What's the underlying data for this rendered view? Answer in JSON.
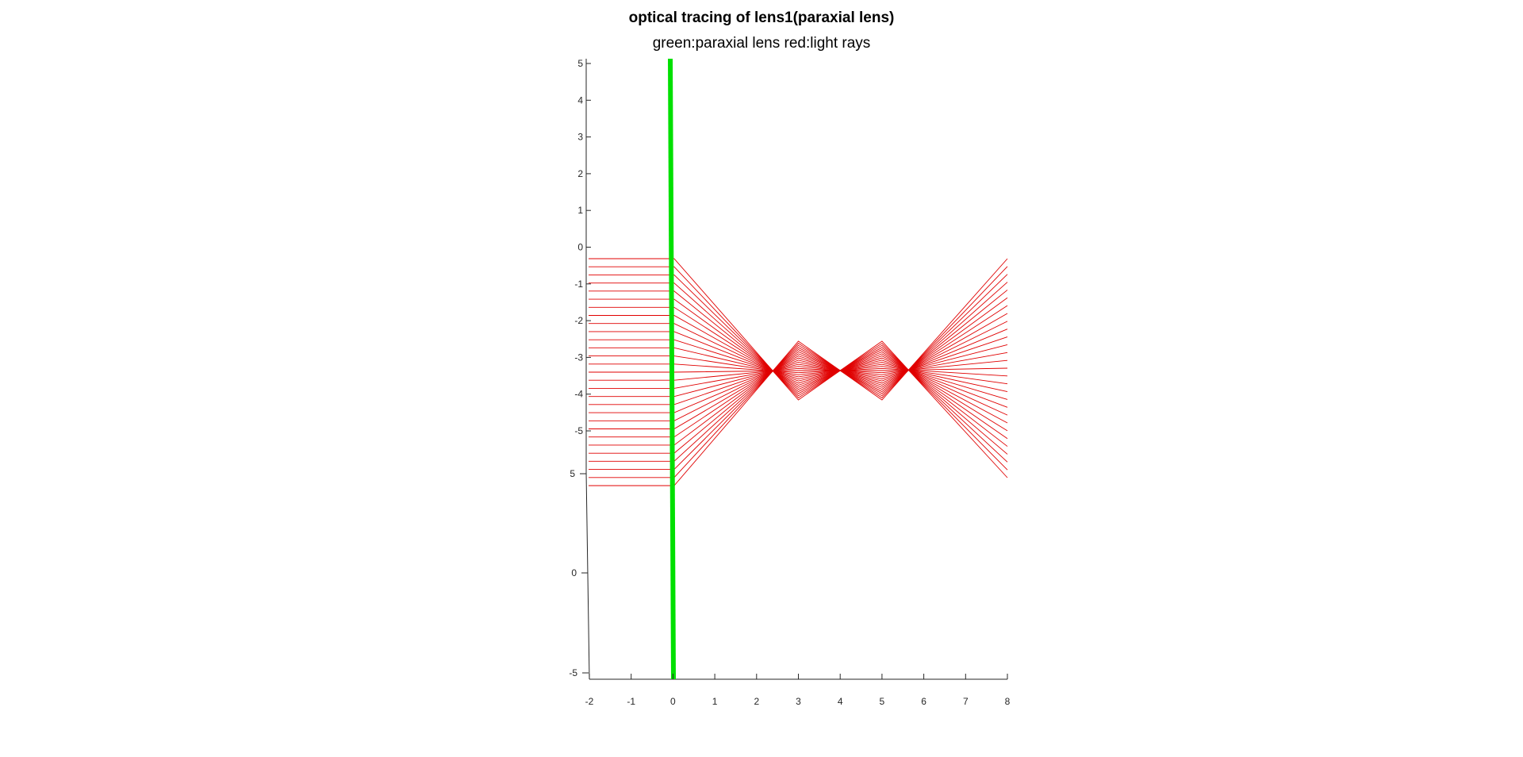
{
  "chart_data": {
    "type": "line",
    "title": "optical tracing of lens1(paraxial lens)",
    "subtitle": "green:paraxial lens   red:light rays",
    "x_ticks": [
      "-2",
      "-1",
      "0",
      "1",
      "2",
      "3",
      "4",
      "5",
      "6",
      "7",
      "8"
    ],
    "y_ticks": [
      "-5",
      "0",
      "5"
    ],
    "z_ticks": [
      "5",
      "4",
      "3",
      "2",
      "1",
      "0",
      "-1",
      "-2",
      "-3",
      "-4",
      "-5"
    ],
    "xlim": [
      -2,
      8
    ],
    "lens": {
      "color": "#00e000",
      "x": 0
    },
    "rays": {
      "color": "#e00000",
      "count": 29,
      "start_x": -2,
      "end_x": 8,
      "height_range": [
        -0.25,
        -6.4
      ],
      "focus_near": {
        "x_range": [
          3,
          5
        ],
        "height_range": [
          -2.5,
          -4.1
        ]
      }
    }
  }
}
